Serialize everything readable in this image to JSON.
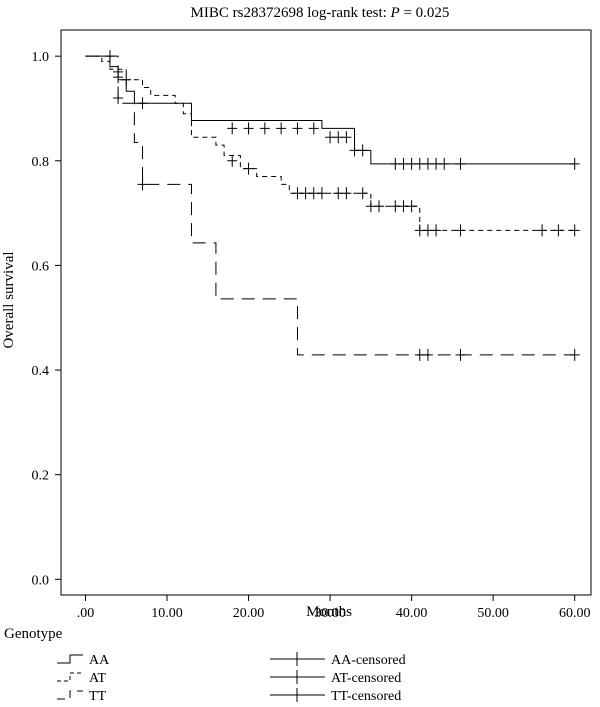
{
  "chart_data": {
    "type": "line",
    "title_prefix": "MIBC rs28372698 log-rank test: ",
    "title_p_symbol": "P",
    "title_p_value": " = 0.025",
    "xlabel": "Months",
    "ylabel": "Overall survival",
    "xlim": [
      -3,
      62
    ],
    "ylim": [
      -0.03,
      1.05
    ],
    "x_ticks": [
      0,
      10,
      20,
      30,
      40,
      50,
      60
    ],
    "x_tick_labels": [
      ".00",
      "10.00",
      "20.00",
      "30.00",
      "40.00",
      "50.00",
      "60.00"
    ],
    "y_ticks": [
      0,
      0.2,
      0.4,
      0.6,
      0.8,
      1.0
    ],
    "y_tick_labels": [
      "0.0",
      "0.2",
      "0.4",
      "0.6",
      "0.8",
      "1.0"
    ],
    "grid": false,
    "legend_title": "Genotype",
    "legend_placement": "bottom",
    "series": [
      {
        "name": "AA",
        "censored_name": "AA-censored",
        "dash": "solid",
        "steps": [
          [
            0,
            1.0
          ],
          [
            3,
            0.98
          ],
          [
            4,
            0.955
          ],
          [
            5,
            0.933
          ],
          [
            6,
            0.91
          ],
          [
            13,
            0.877
          ],
          [
            29,
            0.862
          ],
          [
            33,
            0.82
          ],
          [
            35,
            0.794
          ],
          [
            60,
            0.794
          ]
        ],
        "censored": [
          [
            3,
            1.0
          ],
          [
            4,
            0.97
          ],
          [
            5,
            0.955
          ],
          [
            7,
            0.91
          ],
          [
            18,
            0.862
          ],
          [
            20,
            0.862
          ],
          [
            22,
            0.862
          ],
          [
            24,
            0.862
          ],
          [
            26,
            0.862
          ],
          [
            28,
            0.862
          ],
          [
            30,
            0.845
          ],
          [
            31,
            0.845
          ],
          [
            32,
            0.845
          ],
          [
            33,
            0.82
          ],
          [
            34,
            0.82
          ],
          [
            38,
            0.794
          ],
          [
            39,
            0.794
          ],
          [
            40,
            0.794
          ],
          [
            41,
            0.794
          ],
          [
            42,
            0.794
          ],
          [
            43,
            0.794
          ],
          [
            44,
            0.794
          ],
          [
            46,
            0.794
          ],
          [
            60,
            0.794
          ]
        ]
      },
      {
        "name": "AT",
        "censored_name": "AT-censored",
        "dash": "dash-short",
        "steps": [
          [
            0,
            1.0
          ],
          [
            2,
            0.99
          ],
          [
            3,
            0.975
          ],
          [
            5,
            0.955
          ],
          [
            7,
            0.94
          ],
          [
            8,
            0.925
          ],
          [
            11,
            0.91
          ],
          [
            12,
            0.89
          ],
          [
            13,
            0.845
          ],
          [
            16,
            0.83
          ],
          [
            17,
            0.81
          ],
          [
            19,
            0.785
          ],
          [
            21,
            0.77
          ],
          [
            24,
            0.755
          ],
          [
            25,
            0.738
          ],
          [
            35,
            0.713
          ],
          [
            41,
            0.667
          ],
          [
            60,
            0.667
          ]
        ],
        "censored": [
          [
            4,
            0.96
          ],
          [
            18,
            0.8
          ],
          [
            20,
            0.785
          ],
          [
            26,
            0.738
          ],
          [
            27,
            0.738
          ],
          [
            28,
            0.738
          ],
          [
            29,
            0.738
          ],
          [
            31,
            0.738
          ],
          [
            32,
            0.738
          ],
          [
            34,
            0.738
          ],
          [
            35,
            0.713
          ],
          [
            36,
            0.713
          ],
          [
            38,
            0.713
          ],
          [
            39,
            0.713
          ],
          [
            40,
            0.713
          ],
          [
            41,
            0.667
          ],
          [
            42,
            0.667
          ],
          [
            43,
            0.667
          ],
          [
            46,
            0.667
          ],
          [
            56,
            0.667
          ],
          [
            58,
            0.667
          ],
          [
            60,
            0.667
          ]
        ]
      },
      {
        "name": "TT",
        "censored_name": "TT-censored",
        "dash": "dash-long",
        "steps": [
          [
            0,
            1.0
          ],
          [
            4,
            0.91
          ],
          [
            6,
            0.835
          ],
          [
            7,
            0.755
          ],
          [
            13,
            0.643
          ],
          [
            16,
            0.536
          ],
          [
            26,
            0.429
          ],
          [
            60,
            0.429
          ]
        ],
        "censored": [
          [
            4,
            0.92
          ],
          [
            7,
            0.755
          ],
          [
            41,
            0.429
          ],
          [
            42,
            0.429
          ],
          [
            46,
            0.429
          ],
          [
            60,
            0.429
          ]
        ]
      }
    ]
  }
}
